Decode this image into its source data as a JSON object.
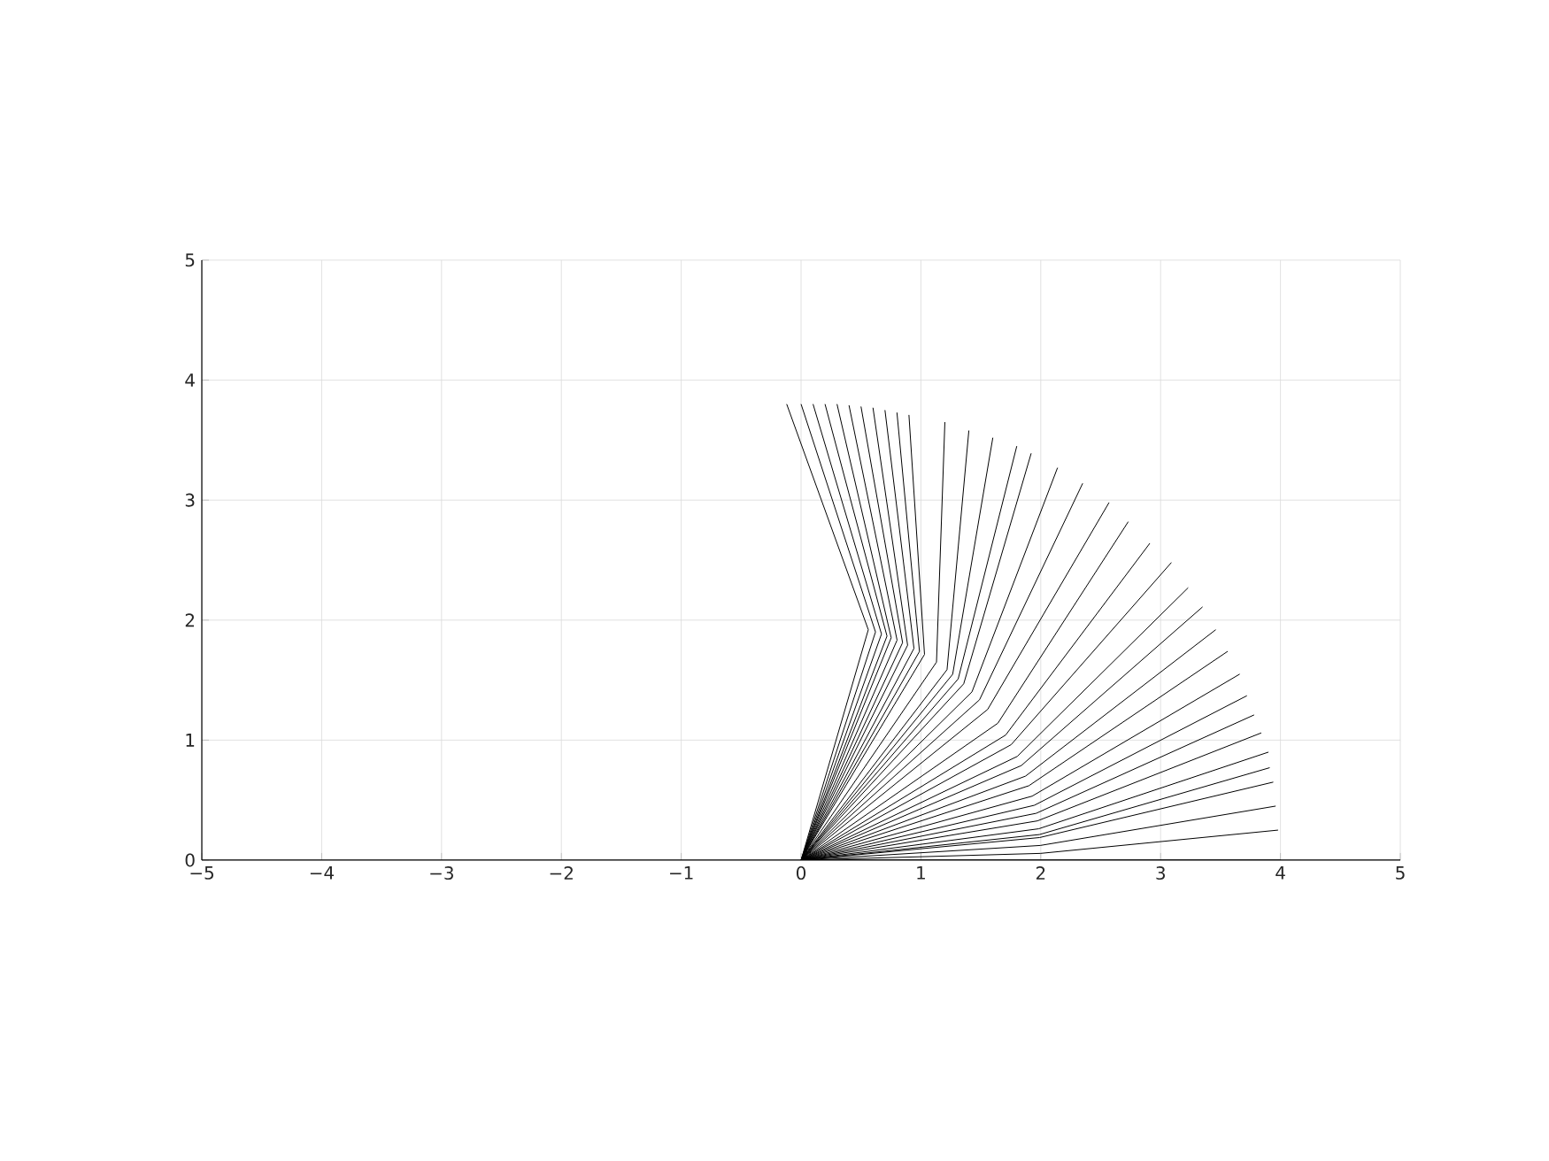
{
  "chart_data": {
    "type": "line",
    "xlim": [
      -5,
      5
    ],
    "ylim": [
      0,
      5
    ],
    "xticks": [
      {
        "value": -5,
        "label": "−5"
      },
      {
        "value": -4,
        "label": "−4"
      },
      {
        "value": -3,
        "label": "−3"
      },
      {
        "value": -2,
        "label": "−2"
      },
      {
        "value": -1,
        "label": "−1"
      },
      0,
      1,
      2,
      3,
      4,
      5
    ],
    "yticks": [
      0,
      1,
      2,
      3,
      4,
      5
    ],
    "grid": true,
    "marker": "none",
    "line_style": "solid",
    "series": [
      {
        "color": "#000000",
        "x": [
          0,
          0.561,
          -0.12
        ],
        "values": [
          0,
          1.92,
          3.8
        ]
      },
      {
        "color": "#000000",
        "x": [
          0,
          0.621,
          0.0
        ],
        "values": [
          0,
          1.901,
          3.8
        ]
      },
      {
        "color": "#000000",
        "x": [
          0,
          0.671,
          0.1
        ],
        "values": [
          0,
          1.884,
          3.8
        ]
      },
      {
        "color": "#000000",
        "x": [
          0,
          0.717,
          0.2
        ],
        "values": [
          0,
          1.867,
          3.8
        ]
      },
      {
        "color": "#000000",
        "x": [
          0,
          0.752,
          0.3
        ],
        "values": [
          0,
          1.853,
          3.8
        ]
      },
      {
        "color": "#000000",
        "x": [
          0,
          0.801,
          0.4
        ],
        "values": [
          0,
          1.833,
          3.79
        ]
      },
      {
        "color": "#000000",
        "x": [
          0,
          0.847,
          0.5
        ],
        "values": [
          0,
          1.812,
          3.78
        ]
      },
      {
        "color": "#000000",
        "x": [
          0,
          0.889,
          0.6
        ],
        "values": [
          0,
          1.791,
          3.77
        ]
      },
      {
        "color": "#000000",
        "x": [
          0,
          0.942,
          0.7
        ],
        "values": [
          0,
          1.764,
          3.75
        ]
      },
      {
        "color": "#000000",
        "x": [
          0,
          0.988,
          0.8
        ],
        "values": [
          0,
          1.739,
          3.73
        ]
      },
      {
        "color": "#000000",
        "x": [
          0,
          1.03,
          0.9
        ],
        "values": [
          0,
          1.714,
          3.71
        ]
      },
      {
        "color": "#000000",
        "x": [
          0,
          1.13,
          1.2
        ],
        "values": [
          0,
          1.65,
          3.65
        ]
      },
      {
        "color": "#000000",
        "x": [
          0,
          1.218,
          1.4
        ],
        "values": [
          0,
          1.587,
          3.58
        ]
      },
      {
        "color": "#000000",
        "x": [
          0,
          1.265,
          1.6
        ],
        "values": [
          0,
          1.549,
          3.52
        ]
      },
      {
        "color": "#000000",
        "x": [
          0,
          1.311,
          1.8
        ],
        "values": [
          0,
          1.51,
          3.45
        ]
      },
      {
        "color": "#000000",
        "x": [
          0,
          1.357,
          1.92
        ],
        "values": [
          0,
          1.469,
          3.39
        ]
      },
      {
        "color": "#000000",
        "x": [
          0,
          1.426,
          2.14
        ],
        "values": [
          0,
          1.402,
          3.27
        ]
      },
      {
        "color": "#000000",
        "x": [
          0,
          1.489,
          2.35
        ],
        "values": [
          0,
          1.336,
          3.14
        ]
      },
      {
        "color": "#000000",
        "x": [
          0,
          1.557,
          2.57
        ],
        "values": [
          0,
          1.256,
          2.98
        ]
      },
      {
        "color": "#000000",
        "x": [
          0,
          1.642,
          2.73
        ],
        "values": [
          0,
          1.141,
          2.82
        ]
      },
      {
        "color": "#000000",
        "x": [
          0,
          1.707,
          2.91
        ],
        "values": [
          0,
          1.042,
          2.64
        ]
      },
      {
        "color": "#000000",
        "x": [
          0,
          1.753,
          3.09
        ],
        "values": [
          0,
          0.962,
          2.48
        ]
      },
      {
        "color": "#000000",
        "x": [
          0,
          1.804,
          3.23
        ],
        "values": [
          0,
          0.864,
          2.27
        ]
      },
      {
        "color": "#000000",
        "x": [
          0,
          1.838,
          3.35
        ],
        "values": [
          0,
          0.788,
          2.11
        ]
      },
      {
        "color": "#000000",
        "x": [
          0,
          1.873,
          3.46
        ],
        "values": [
          0,
          0.7,
          1.92
        ]
      },
      {
        "color": "#000000",
        "x": [
          0,
          1.901,
          3.56
        ],
        "values": [
          0,
          0.62,
          1.74
        ]
      },
      {
        "color": "#000000",
        "x": [
          0,
          1.928,
          3.66
        ],
        "values": [
          0,
          0.533,
          1.55
        ]
      },
      {
        "color": "#000000",
        "x": [
          0,
          1.947,
          3.72
        ],
        "values": [
          0,
          0.457,
          1.37
        ]
      },
      {
        "color": "#000000",
        "x": [
          0,
          1.962,
          3.78
        ],
        "values": [
          0,
          0.39,
          1.21
        ]
      },
      {
        "color": "#000000",
        "x": [
          0,
          1.973,
          3.84
        ],
        "values": [
          0,
          0.327,
          1.06
        ]
      },
      {
        "color": "#000000",
        "x": [
          0,
          1.983,
          3.9
        ],
        "values": [
          0,
          0.261,
          0.9
        ]
      },
      {
        "color": "#000000",
        "x": [
          0,
          1.989,
          3.91
        ],
        "values": [
          0,
          0.213,
          0.77
        ]
      },
      {
        "color": "#000000",
        "x": [
          0,
          1.991,
          3.94
        ],
        "values": [
          0,
          0.188,
          0.65
        ]
      },
      {
        "color": "#000000",
        "x": [
          0,
          1.996,
          3.96
        ],
        "values": [
          0,
          0.122,
          0.45
        ]
      },
      {
        "color": "#000000",
        "x": [
          0,
          1.999,
          3.98
        ],
        "values": [
          0,
          0.056,
          0.25
        ]
      },
      {
        "color": "#000000",
        "x": [
          0,
          2.0,
          4.0
        ],
        "values": [
          0,
          0.0,
          0.0
        ]
      }
    ]
  }
}
